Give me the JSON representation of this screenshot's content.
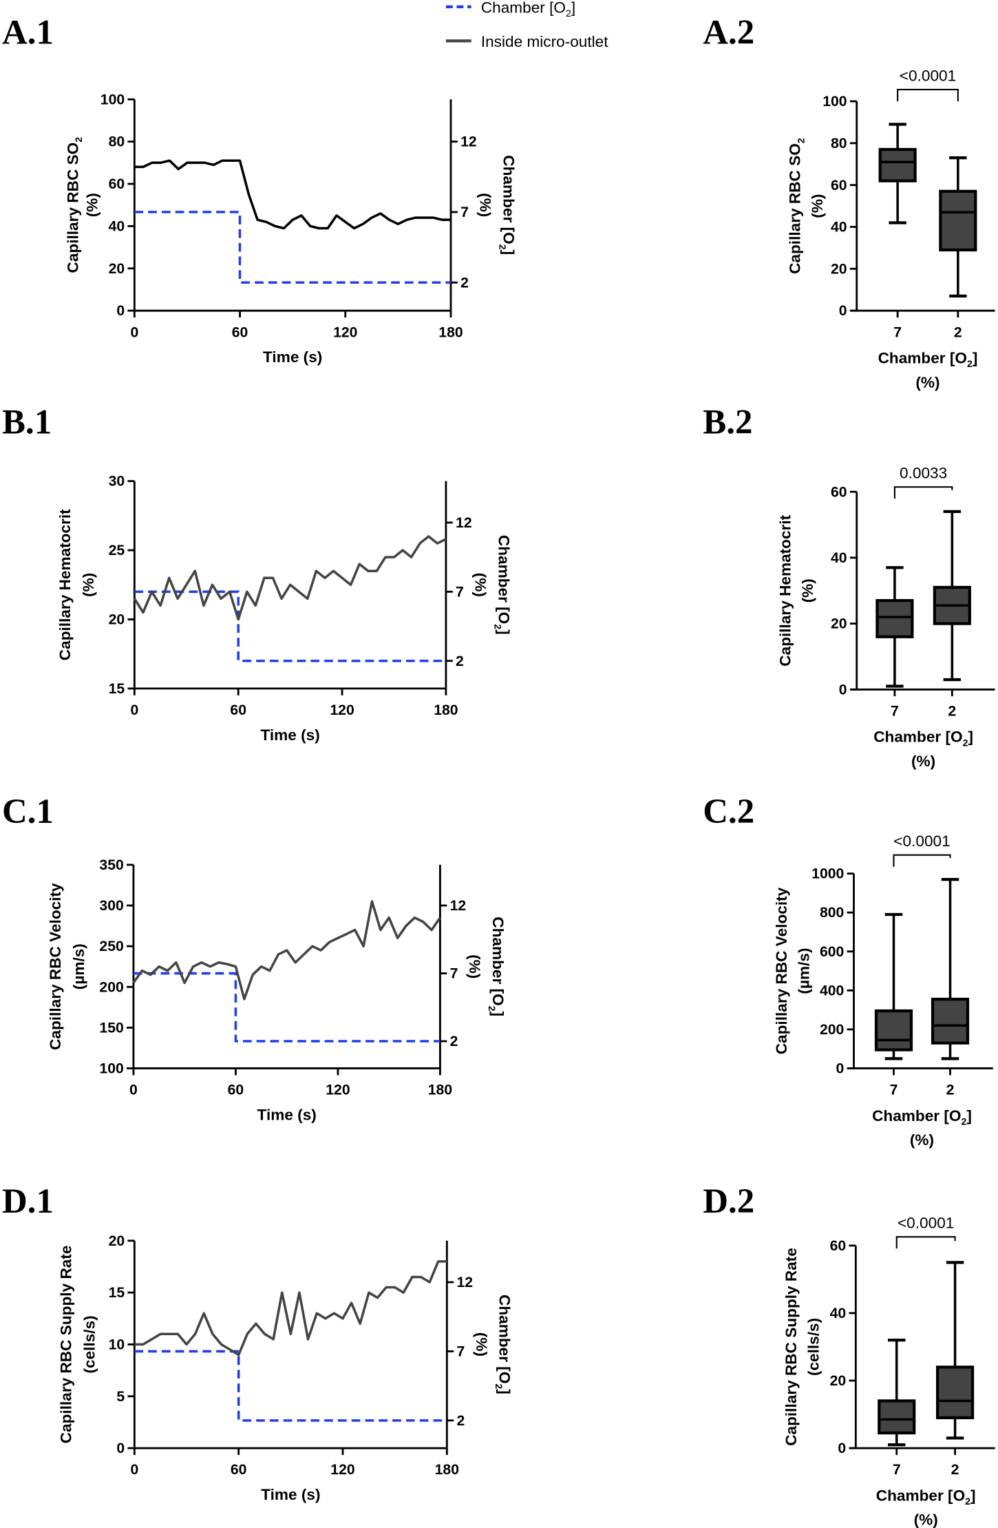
{
  "legend": {
    "items": [
      {
        "name": "Chamber [O2]",
        "pre": "Chamber [O",
        "sub": "2",
        "post": "]",
        "color": "#1f3fe8",
        "style": "dashed"
      },
      {
        "name": "Inside micro-outlet",
        "pre": "Inside micro-outlet",
        "sub": "",
        "post": "",
        "color": "#444444",
        "style": "solid"
      }
    ]
  },
  "chart_data": [
    {
      "id": "A.1",
      "type": "line",
      "panel_label": "A.1",
      "x": {
        "label": "Time (s)",
        "range": [
          0,
          180
        ],
        "ticks": [
          0,
          60,
          120,
          180
        ]
      },
      "y": {
        "label": {
          "pre": "Capillary RBC SO",
          "sub": "2",
          "post": ""
        },
        "units": "(%)",
        "range": [
          0,
          100
        ],
        "ticks": [
          0,
          20,
          40,
          60,
          80,
          100
        ]
      },
      "y2": {
        "label": {
          "pre": "Chamber [O",
          "sub": "2",
          "post": "]"
        },
        "units": "(%)",
        "range": [
          0,
          15
        ],
        "ticks": [
          2,
          7,
          12
        ]
      },
      "series": [
        {
          "name": "Chamber [O2]",
          "axis": "y2",
          "color": "#1f3fe8",
          "t": [
            0,
            60,
            60,
            180
          ],
          "values": [
            7,
            7,
            2,
            2
          ]
        },
        {
          "name": "Inside micro-outlet",
          "axis": "y",
          "color": "#000000",
          "t_step": 5,
          "values": [
            68,
            68,
            70,
            70,
            71,
            67,
            70,
            70,
            70,
            69,
            71,
            71,
            71,
            55,
            43,
            42,
            40,
            39,
            43,
            45,
            40,
            39,
            39,
            45,
            42,
            39,
            41,
            44,
            46,
            43,
            41,
            43,
            44,
            44,
            44,
            43,
            43
          ]
        }
      ]
    },
    {
      "id": "A.2",
      "type": "box",
      "panel_label": "A.2",
      "x": {
        "label": {
          "pre": "Chamber [O",
          "sub": "2",
          "post": "]"
        },
        "units": "(%)",
        "categories": [
          "7",
          "2"
        ]
      },
      "y": {
        "label": {
          "pre": "Capillary RBC SO",
          "sub": "2",
          "post": ""
        },
        "units": "(%)",
        "range": [
          0,
          100
        ],
        "ticks": [
          0,
          20,
          40,
          60,
          80,
          100
        ]
      },
      "boxes": [
        {
          "category": "7",
          "min": 42,
          "q1": 62,
          "median": 71,
          "q3": 77,
          "max": 89
        },
        {
          "category": "2",
          "min": 7,
          "q1": 29,
          "median": 47,
          "q3": 57,
          "max": 73
        }
      ],
      "p_value": "<0.0001",
      "color": "#444444"
    },
    {
      "id": "B.1",
      "type": "line",
      "panel_label": "B.1",
      "x": {
        "label": "Time (s)",
        "range": [
          0,
          180
        ],
        "ticks": [
          0,
          60,
          120,
          180
        ]
      },
      "y": {
        "label": {
          "pre": "Capillary Hematocrit",
          "sub": "",
          "post": ""
        },
        "units": "(%)",
        "range": [
          15,
          30
        ],
        "ticks": [
          15,
          20,
          25,
          30
        ]
      },
      "y2": {
        "label": {
          "pre": "Chamber [O",
          "sub": "2",
          "post": "]"
        },
        "units": "(%)",
        "range": [
          0,
          15
        ],
        "ticks": [
          2,
          7,
          12
        ]
      },
      "series": [
        {
          "name": "Chamber [O2]",
          "axis": "y2",
          "color": "#1f3fe8",
          "t": [
            0,
            60,
            60,
            180
          ],
          "values": [
            7,
            7,
            2,
            2
          ]
        },
        {
          "name": "Inside micro-outlet",
          "axis": "y",
          "color": "#444444",
          "t_step": 5,
          "values": [
            21.5,
            20.5,
            22,
            21,
            23,
            21.5,
            22.5,
            23.5,
            21,
            22.5,
            21.5,
            22,
            20,
            22,
            21,
            23,
            23,
            21.5,
            22.5,
            22,
            21.5,
            23.5,
            23,
            23.5,
            23,
            22.5,
            24,
            23.5,
            23.5,
            24.5,
            24.5,
            25,
            24.5,
            25.5,
            26,
            25.5,
            25.8
          ]
        }
      ]
    },
    {
      "id": "B.2",
      "type": "box",
      "panel_label": "B.2",
      "x": {
        "label": {
          "pre": "Chamber [O",
          "sub": "2",
          "post": "]"
        },
        "units": "(%)",
        "categories": [
          "7",
          "2"
        ]
      },
      "y": {
        "label": {
          "pre": "Capillary Hematocrit",
          "sub": "",
          "post": ""
        },
        "units": "(%)",
        "range": [
          0,
          60
        ],
        "ticks": [
          0,
          20,
          40,
          60
        ]
      },
      "boxes": [
        {
          "category": "7",
          "min": 1,
          "q1": 16,
          "median": 22,
          "q3": 27,
          "max": 37
        },
        {
          "category": "2",
          "min": 3,
          "q1": 20,
          "median": 25.5,
          "q3": 31,
          "max": 54
        }
      ],
      "p_value": "0.0033",
      "color": "#444444"
    },
    {
      "id": "C.1",
      "type": "line",
      "panel_label": "C.1",
      "x": {
        "label": "Time (s)",
        "range": [
          0,
          180
        ],
        "ticks": [
          0,
          60,
          120,
          180
        ]
      },
      "y": {
        "label": {
          "pre": "Capillary RBC Velocity",
          "sub": "",
          "post": ""
        },
        "units": "(µm/s)",
        "range": [
          100,
          350
        ],
        "ticks": [
          100,
          150,
          200,
          250,
          300,
          350
        ]
      },
      "y2": {
        "label": {
          "pre": "Chamber [O",
          "sub": "2",
          "post": "]"
        },
        "units": "(%)",
        "range": [
          0,
          15
        ],
        "ticks": [
          2,
          7,
          12
        ]
      },
      "series": [
        {
          "name": "Chamber [O2]",
          "axis": "y2",
          "color": "#1f3fe8",
          "t": [
            0,
            60,
            60,
            180
          ],
          "values": [
            7,
            7,
            2,
            2
          ]
        },
        {
          "name": "Inside micro-outlet",
          "axis": "y",
          "color": "#444444",
          "t_step": 5,
          "values": [
            205,
            220,
            215,
            225,
            220,
            230,
            205,
            225,
            230,
            225,
            230,
            228,
            225,
            185,
            215,
            225,
            220,
            240,
            245,
            230,
            240,
            250,
            245,
            255,
            260,
            265,
            270,
            250,
            305,
            270,
            285,
            260,
            275,
            285,
            280,
            270,
            285
          ]
        }
      ]
    },
    {
      "id": "C.2",
      "type": "box",
      "panel_label": "C.2",
      "x": {
        "label": {
          "pre": "Chamber [O",
          "sub": "2",
          "post": "]"
        },
        "units": "(%)",
        "categories": [
          "7",
          "2"
        ]
      },
      "y": {
        "label": {
          "pre": "Capillary RBC Velocity",
          "sub": "",
          "post": ""
        },
        "units": "(µm/s)",
        "range": [
          0,
          1000
        ],
        "ticks": [
          0,
          200,
          400,
          600,
          800,
          1000
        ]
      },
      "boxes": [
        {
          "category": "7",
          "min": 50,
          "q1": 95,
          "median": 145,
          "q3": 295,
          "max": 790
        },
        {
          "category": "2",
          "min": 50,
          "q1": 130,
          "median": 220,
          "q3": 355,
          "max": 970
        }
      ],
      "p_value": "<0.0001",
      "color": "#444444"
    },
    {
      "id": "D.1",
      "type": "line",
      "panel_label": "D.1",
      "x": {
        "label": "Time (s)",
        "range": [
          0,
          180
        ],
        "ticks": [
          0,
          60,
          120,
          180
        ]
      },
      "y": {
        "label": {
          "pre": "Capillary RBC Supply Rate",
          "sub": "",
          "post": ""
        },
        "units": "(cells/s)",
        "range": [
          0,
          20
        ],
        "ticks": [
          0,
          5,
          10,
          15,
          20
        ]
      },
      "y2": {
        "label": {
          "pre": "Chamber [O",
          "sub": "2",
          "post": "]"
        },
        "units": "(%)",
        "range": [
          0,
          15
        ],
        "ticks": [
          2,
          7,
          12
        ]
      },
      "series": [
        {
          "name": "Chamber [O2]",
          "axis": "y2",
          "color": "#1f3fe8",
          "t": [
            0,
            60,
            60,
            180
          ],
          "values": [
            7,
            7,
            2,
            2
          ]
        },
        {
          "name": "Inside micro-outlet",
          "axis": "y",
          "color": "#444444",
          "t_step": 5,
          "values": [
            10,
            10,
            10.5,
            11,
            11,
            11,
            10,
            11,
            13,
            11,
            10,
            9.5,
            9,
            11,
            12,
            11,
            10.5,
            15,
            11,
            15,
            10.5,
            13,
            12.5,
            13,
            12.5,
            14,
            12,
            15,
            14.5,
            15.5,
            15.5,
            15,
            16.5,
            16.5,
            16,
            18,
            18
          ]
        }
      ]
    },
    {
      "id": "D.2",
      "type": "box",
      "panel_label": "D.2",
      "x": {
        "label": {
          "pre": "Chamber [O",
          "sub": "2",
          "post": "]"
        },
        "units": "(%)",
        "categories": [
          "7",
          "2"
        ]
      },
      "y": {
        "label": {
          "pre": "Capillary RBC Supply Rate",
          "sub": "",
          "post": ""
        },
        "units": "(cells/s)",
        "range": [
          0,
          60
        ],
        "ticks": [
          0,
          20,
          40,
          60
        ]
      },
      "boxes": [
        {
          "category": "7",
          "min": 1,
          "q1": 4.5,
          "median": 8.5,
          "q3": 14,
          "max": 32
        },
        {
          "category": "2",
          "min": 3,
          "q1": 9,
          "median": 14,
          "q3": 24,
          "max": 55
        }
      ],
      "p_value": "<0.0001",
      "color": "#444444"
    }
  ]
}
